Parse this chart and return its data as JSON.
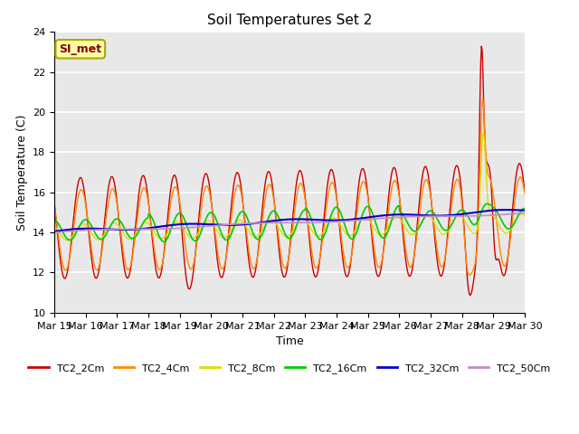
{
  "title": "Soil Temperatures Set 2",
  "xlabel": "Time",
  "ylabel": "Soil Temperature (C)",
  "ylim": [
    10,
    24
  ],
  "yticks": [
    10,
    12,
    14,
    16,
    18,
    20,
    22,
    24
  ],
  "legend_label": "SI_met",
  "series_labels": [
    "TC2_2Cm",
    "TC2_4Cm",
    "TC2_8Cm",
    "TC2_16Cm",
    "TC2_32Cm",
    "TC2_50Cm"
  ],
  "series_colors": [
    "#cc0000",
    "#ff8800",
    "#dddd00",
    "#00cc00",
    "#0000cc",
    "#cc88cc"
  ],
  "background_color": "#e8e8e8",
  "x_tick_labels": [
    "Mar 15",
    "Mar 16",
    "Mar 17",
    "Mar 18",
    "Mar 19",
    "Mar 20",
    "Mar 21",
    "Mar 22",
    "Mar 23",
    "Mar 24",
    "Mar 25",
    "Mar 26",
    "Mar 27",
    "Mar 28",
    "Mar 29",
    "Mar 30"
  ]
}
